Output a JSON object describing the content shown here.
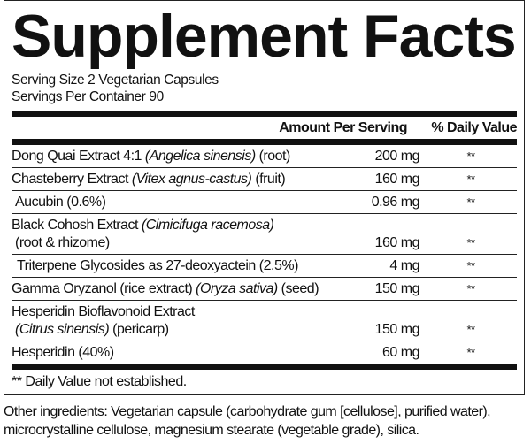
{
  "title": "Supplement Facts",
  "serving_size": "Serving Size 2 Vegetarian Capsules",
  "servings_per_container": "Servings Per Container 90",
  "columns": {
    "amount": "Amount Per Serving",
    "daily_value": "% Daily Value"
  },
  "rows": [
    {
      "name": "Dong Quai Extract 4:1 ",
      "latin": "(Angelica sinensis)",
      "part": " (root)",
      "amount": "200 mg",
      "dv": "**"
    },
    {
      "name": "Chasteberry Extract ",
      "latin": "(Vitex agnus-castus)",
      "part": " (fruit)",
      "amount": "160 mg",
      "dv": "**"
    },
    {
      "name": "Aucubin (0.6%)",
      "amount": "0.96 mg",
      "dv": "**"
    },
    {
      "name": "Black Cohosh Extract ",
      "latin": "(Cimicifuga racemosa)",
      "line2": "(root & rhizome)",
      "amount": "160 mg",
      "dv": "**"
    },
    {
      "name": "Triterpene Glycosides as 27-deoxyactein (2.5%)",
      "amount": "4 mg",
      "dv": "**"
    },
    {
      "name": "Gamma Oryzanol (rice extract) ",
      "latin": "(Oryza sativa)",
      "part": " (seed)",
      "amount": "150 mg",
      "dv": "**"
    },
    {
      "name": "Hesperidin Bioflavonoid Extract",
      "latin2": "(Citrus sinensis)",
      "part2": " (pericarp)",
      "amount": "150 mg",
      "dv": "**"
    },
    {
      "name": "Hesperidin (40%)",
      "amount": "60 mg",
      "dv": "**"
    }
  ],
  "footnote": "** Daily Value not established.",
  "other_ingredients": "Other ingredients: Vegetarian capsule (carbohydrate gum [cellulose], purified water), microcrystalline cellulose, magnesium stearate (vegetable grade), silica."
}
